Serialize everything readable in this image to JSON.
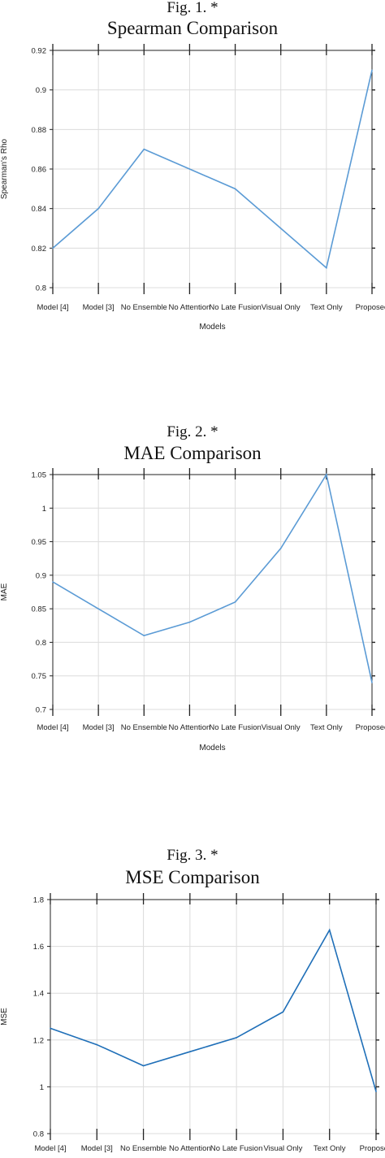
{
  "figures": [
    {
      "label": "Fig. 1.   *",
      "title": "Spearman Comparison"
    },
    {
      "label": "Fig. 2.   *",
      "title": "MAE Comparison"
    },
    {
      "label": "Fig. 3.   *",
      "title": "MSE Comparison"
    }
  ],
  "chart_data": [
    {
      "type": "line",
      "title": "Spearman Comparison",
      "xlabel": "Models",
      "ylabel": "Spearman's Rho",
      "categories": [
        "Model [4]",
        "Model [3]",
        "No Ensemble",
        "No Attention",
        "No Late Fusion",
        "Visual Only",
        "Text Only",
        "Proposed"
      ],
      "series": [
        {
          "values": [
            0.82,
            0.84,
            0.87,
            0.86,
            0.85,
            0.83,
            0.81,
            0.91
          ]
        }
      ],
      "ylim": [
        0.8,
        0.92
      ],
      "yticks": [
        "0.8",
        "0.82",
        "0.84",
        "0.86",
        "0.88",
        "0.9",
        "0.92"
      ],
      "grid": true,
      "line_color": "#5b9bd5"
    },
    {
      "type": "line",
      "title": "MAE Comparison",
      "xlabel": "Models",
      "ylabel": "MAE",
      "categories": [
        "Model [4]",
        "Model [3]",
        "No Ensemble",
        "No Attention",
        "No Late Fusion",
        "Visual Only",
        "Text Only",
        "Proposed"
      ],
      "series": [
        {
          "values": [
            0.89,
            0.85,
            0.81,
            0.83,
            0.86,
            0.94,
            1.05,
            0.74
          ]
        }
      ],
      "ylim": [
        0.7,
        1.05
      ],
      "yticks": [
        "0.7",
        "0.75",
        "0.8",
        "0.85",
        "0.9",
        "0.95",
        "1",
        "1.05"
      ],
      "grid": true,
      "line_color": "#5b9bd5"
    },
    {
      "type": "line",
      "title": "MSE Comparison",
      "xlabel": "",
      "ylabel": "MSE",
      "categories": [
        "Model [4]",
        "Model [3]",
        "No Ensemble",
        "No Attention",
        "No Late Fusion",
        "Visual Only",
        "Text Only",
        "Proposed"
      ],
      "series": [
        {
          "values": [
            1.25,
            1.18,
            1.09,
            1.15,
            1.21,
            1.32,
            1.67,
            0.98
          ]
        }
      ],
      "ylim": [
        0.8,
        1.8
      ],
      "yticks": [
        "0.8",
        "1",
        "1.2",
        "1.4",
        "1.6",
        "1.8"
      ],
      "grid": true,
      "line_color": "#1f6fb8"
    }
  ]
}
